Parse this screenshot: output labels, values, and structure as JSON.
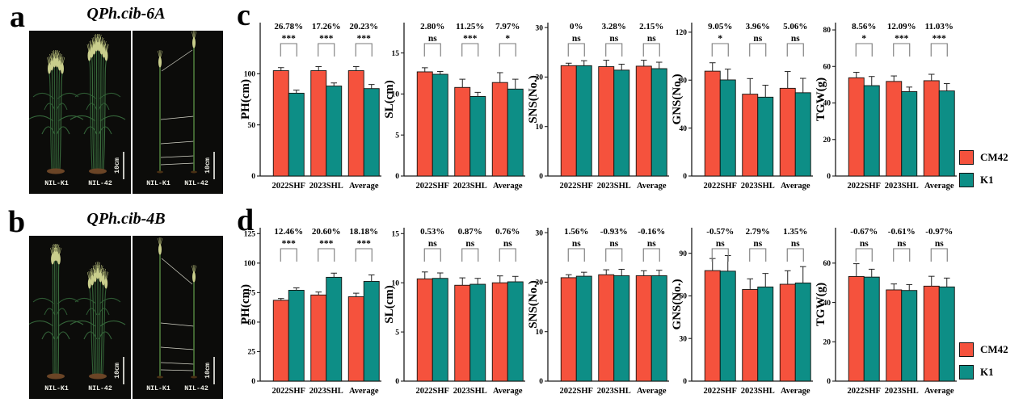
{
  "colors": {
    "cm42": "#F5523D",
    "k1": "#0D8E86",
    "photo_bg": "#0c0c0a"
  },
  "legend": {
    "items": [
      {
        "label": "CM42",
        "color_key": "cm42"
      },
      {
        "label": "K1",
        "color_key": "k1"
      }
    ]
  },
  "panels": {
    "a": {
      "label": "a",
      "title": "QPh.cib-6A",
      "nil_labels": [
        "NIL-K1",
        "NIL-42"
      ],
      "scale_label": "10cm"
    },
    "b": {
      "label": "b",
      "title": "QPh.cib-4B",
      "nil_labels": [
        "NIL-K1",
        "NIL-42"
      ],
      "scale_label": "10cm"
    },
    "c": {
      "label": "c"
    },
    "d": {
      "label": "d"
    }
  },
  "chart_data": [
    {
      "panel": "c",
      "type": "bar",
      "ylabel": "PH(cm)",
      "categories": [
        "2022SHF",
        "2023SHL",
        "Average"
      ],
      "series": [
        {
          "name": "CM42",
          "values": [
            103,
            103,
            103
          ],
          "errors": [
            3,
            4,
            4
          ]
        },
        {
          "name": "K1",
          "values": [
            81,
            88,
            85.5
          ],
          "errors": [
            3,
            3,
            4
          ]
        }
      ],
      "annotations": [
        {
          "pct": "26.78%",
          "sig": "***"
        },
        {
          "pct": "17.26%",
          "sig": "***"
        },
        {
          "pct": "20.23%",
          "sig": "***"
        }
      ],
      "yticks": [
        0,
        50,
        100
      ],
      "ymax": 150,
      "legend_position": "right",
      "grid": false
    },
    {
      "panel": "c",
      "type": "bar",
      "ylabel": "SL(cm)",
      "categories": [
        "2022SHF",
        "2023SHL",
        "Average"
      ],
      "series": [
        {
          "name": "CM42",
          "values": [
            12.7,
            10.8,
            11.4
          ],
          "errors": [
            0.5,
            1.0,
            1.2
          ]
        },
        {
          "name": "K1",
          "values": [
            12.4,
            9.7,
            10.6
          ],
          "errors": [
            0.35,
            0.5,
            1.2
          ]
        }
      ],
      "annotations": [
        {
          "pct": "2.80%",
          "sig": "ns"
        },
        {
          "pct": "11.25%",
          "sig": "***"
        },
        {
          "pct": "7.97%",
          "sig": "*"
        }
      ],
      "yticks": [
        0,
        5,
        10,
        15
      ],
      "ymax": 18.7,
      "legend_position": "right",
      "grid": false
    },
    {
      "panel": "c",
      "type": "bar",
      "ylabel": "SNS(No.)",
      "categories": [
        "2022SHF",
        "2023SHL",
        "Average"
      ],
      "series": [
        {
          "name": "CM42",
          "values": [
            22.3,
            22.1,
            22.2
          ],
          "errors": [
            0.5,
            1.3,
            1.2
          ]
        },
        {
          "name": "K1",
          "values": [
            22.3,
            21.4,
            21.7
          ],
          "errors": [
            1.0,
            1.2,
            1.3
          ]
        }
      ],
      "annotations": [
        {
          "pct": "0%",
          "sig": "ns"
        },
        {
          "pct": "3.28%",
          "sig": "ns"
        },
        {
          "pct": "2.15%",
          "sig": "ns"
        }
      ],
      "yticks": [
        0,
        10,
        20,
        30
      ],
      "ymax": 31,
      "legend_position": "right",
      "grid": false
    },
    {
      "panel": "c",
      "type": "bar",
      "ylabel": "GNS(No.)",
      "categories": [
        "2022SHF",
        "2023SHL",
        "Average"
      ],
      "series": [
        {
          "name": "CM42",
          "values": [
            87.5,
            68.3,
            73.2
          ],
          "errors": [
            7,
            13,
            14
          ]
        },
        {
          "name": "K1",
          "values": [
            80.2,
            65.8,
            69.5
          ],
          "errors": [
            9,
            10,
            12
          ]
        }
      ],
      "annotations": [
        {
          "pct": "9.05%",
          "sig": "*"
        },
        {
          "pct": "3.96%",
          "sig": "ns"
        },
        {
          "pct": "5.06%",
          "sig": "ns"
        }
      ],
      "yticks": [
        0,
        40,
        80,
        120
      ],
      "ymax": 128,
      "legend_position": "right",
      "grid": false
    },
    {
      "panel": "c",
      "type": "bar",
      "ylabel": "TGW(g)",
      "categories": [
        "2022SHF",
        "2023SHL",
        "Average"
      ],
      "series": [
        {
          "name": "CM42",
          "values": [
            53.8,
            51.8,
            52.2
          ],
          "errors": [
            3,
            3,
            3.5
          ]
        },
        {
          "name": "K1",
          "values": [
            49.5,
            46.2,
            46.6
          ],
          "errors": [
            5,
            2.5,
            4
          ]
        }
      ],
      "annotations": [
        {
          "pct": "8.56%",
          "sig": "*"
        },
        {
          "pct": "12.09%",
          "sig": "***"
        },
        {
          "pct": "11.03%",
          "sig": "***"
        }
      ],
      "yticks": [
        0,
        20,
        40,
        60,
        80
      ],
      "ymax": 84,
      "legend_position": "right",
      "grid": false
    },
    {
      "panel": "d",
      "type": "bar",
      "ylabel": "PH(cm)",
      "categories": [
        "2022SHF",
        "2023SHL",
        "Average"
      ],
      "series": [
        {
          "name": "CM42",
          "values": [
            68.5,
            73,
            71.5
          ],
          "errors": [
            1.5,
            2.5,
            3
          ]
        },
        {
          "name": "K1",
          "values": [
            77,
            88,
            84.5
          ],
          "errors": [
            2,
            3.5,
            5.5
          ]
        }
      ],
      "annotations": [
        {
          "pct": "12.46%",
          "sig": "***"
        },
        {
          "pct": "20.60%",
          "sig": "***"
        },
        {
          "pct": "18.18%",
          "sig": "***"
        }
      ],
      "yticks": [
        0,
        25,
        50,
        75,
        100,
        125
      ],
      "ymax": 130,
      "legend_position": "right",
      "grid": false
    },
    {
      "panel": "d",
      "type": "bar",
      "ylabel": "SL(cm)",
      "categories": [
        "2022SHF",
        "2023SHL",
        "Average"
      ],
      "series": [
        {
          "name": "CM42",
          "values": [
            10.4,
            9.75,
            10.0
          ],
          "errors": [
            0.7,
            0.75,
            0.7
          ]
        },
        {
          "name": "K1",
          "values": [
            10.45,
            9.85,
            10.1
          ],
          "errors": [
            0.55,
            0.6,
            0.55
          ]
        }
      ],
      "annotations": [
        {
          "pct": "0.53%",
          "sig": "ns"
        },
        {
          "pct": "0.87%",
          "sig": "ns"
        },
        {
          "pct": "0.76%",
          "sig": "ns"
        }
      ],
      "yticks": [
        0,
        5,
        10,
        15
      ],
      "ymax": 15.6,
      "legend_position": "right",
      "grid": false
    },
    {
      "panel": "d",
      "type": "bar",
      "ylabel": "SNS(No.)",
      "categories": [
        "2022SHF",
        "2023SHL",
        "Average"
      ],
      "series": [
        {
          "name": "CM42",
          "values": [
            20.9,
            21.5,
            21.3
          ],
          "errors": [
            0.6,
            1.0,
            1.0
          ]
        },
        {
          "name": "K1",
          "values": [
            21.2,
            21.3,
            21.3
          ],
          "errors": [
            0.8,
            1.3,
            1.1
          ]
        }
      ],
      "annotations": [
        {
          "pct": "1.56%",
          "sig": "ns"
        },
        {
          "pct": "-0.93%",
          "sig": "ns"
        },
        {
          "pct": "-0.16%",
          "sig": "ns"
        }
      ],
      "yticks": [
        0,
        10,
        20,
        30
      ],
      "ymax": 31,
      "legend_position": "right",
      "grid": false
    },
    {
      "panel": "d",
      "type": "bar",
      "ylabel": "GNS(No.)",
      "categories": [
        "2022SHF",
        "2023SHL",
        "Average"
      ],
      "series": [
        {
          "name": "CM42",
          "values": [
            77.8,
            64.5,
            68.2
          ],
          "errors": [
            8.5,
            7.5,
            9.5
          ]
        },
        {
          "name": "K1",
          "values": [
            77.4,
            66.3,
            69.1
          ],
          "errors": [
            11,
            9.5,
            11.5
          ]
        }
      ],
      "annotations": [
        {
          "pct": "-0.57%",
          "sig": "ns"
        },
        {
          "pct": "2.79%",
          "sig": "ns"
        },
        {
          "pct": "1.35%",
          "sig": "ns"
        }
      ],
      "yticks": [
        0,
        30,
        60,
        90
      ],
      "ymax": 108,
      "legend_position": "right",
      "grid": false
    },
    {
      "panel": "d",
      "type": "bar",
      "ylabel": "TGW(g)",
      "categories": [
        "2022SHF",
        "2023SHL",
        "Average"
      ],
      "series": [
        {
          "name": "CM42",
          "values": [
            53.2,
            46.4,
            48.3
          ],
          "errors": [
            6.5,
            3,
            5
          ]
        },
        {
          "name": "K1",
          "values": [
            52.9,
            46.1,
            47.9
          ],
          "errors": [
            4,
            3,
            4.5
          ]
        }
      ],
      "annotations": [
        {
          "pct": "-0.67%",
          "sig": "ns"
        },
        {
          "pct": "-0.61%",
          "sig": "ns"
        },
        {
          "pct": "-0.97%",
          "sig": "ns"
        }
      ],
      "yticks": [
        0,
        20,
        40,
        60
      ],
      "ymax": 78,
      "legend_position": "right",
      "grid": false
    }
  ]
}
